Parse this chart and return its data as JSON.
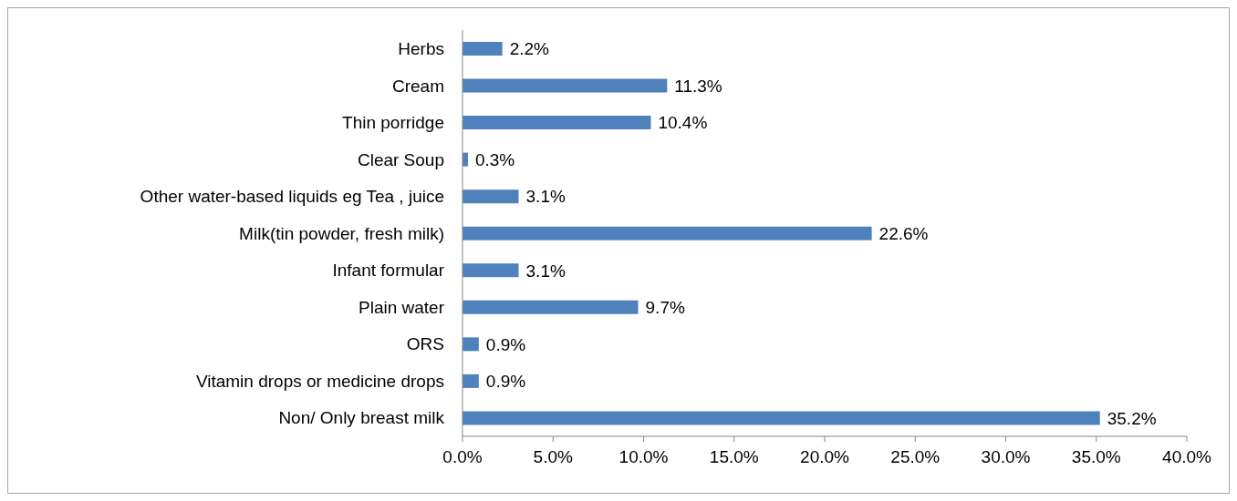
{
  "chart_data": {
    "type": "bar",
    "orientation": "horizontal",
    "categories": [
      "Herbs",
      "Cream",
      "Thin porridge",
      "Clear Soup",
      "Other water-based liquids eg Tea , juice",
      "Milk(tin powder, fresh milk)",
      "Infant formular",
      "Plain water",
      "ORS",
      "Vitamin drops or medicine drops",
      "Non/ Only breast milk"
    ],
    "values": [
      2.2,
      11.3,
      10.4,
      0.3,
      3.1,
      22.6,
      3.1,
      9.7,
      0.9,
      0.9,
      35.2
    ],
    "value_labels": [
      "2.2%",
      "11.3%",
      "10.4%",
      "0.3%",
      "3.1%",
      "22.6%",
      "3.1%",
      "9.7%",
      "0.9%",
      "0.9%",
      "35.2%"
    ],
    "color": "#4f81bd",
    "xlim": [
      0,
      40
    ],
    "xticks": [
      {
        "value": 0,
        "label": "0.0%"
      },
      {
        "value": 5,
        "label": "5.0%"
      },
      {
        "value": 10,
        "label": "10.0%"
      },
      {
        "value": 15,
        "label": "15.0%"
      },
      {
        "value": 20,
        "label": "20.0%"
      },
      {
        "value": 25,
        "label": "25.0%"
      },
      {
        "value": 30,
        "label": "30.0%"
      },
      {
        "value": 35,
        "label": "35.0%"
      },
      {
        "value": 40,
        "label": "40.0%"
      }
    ],
    "grid": false,
    "legend": false
  }
}
